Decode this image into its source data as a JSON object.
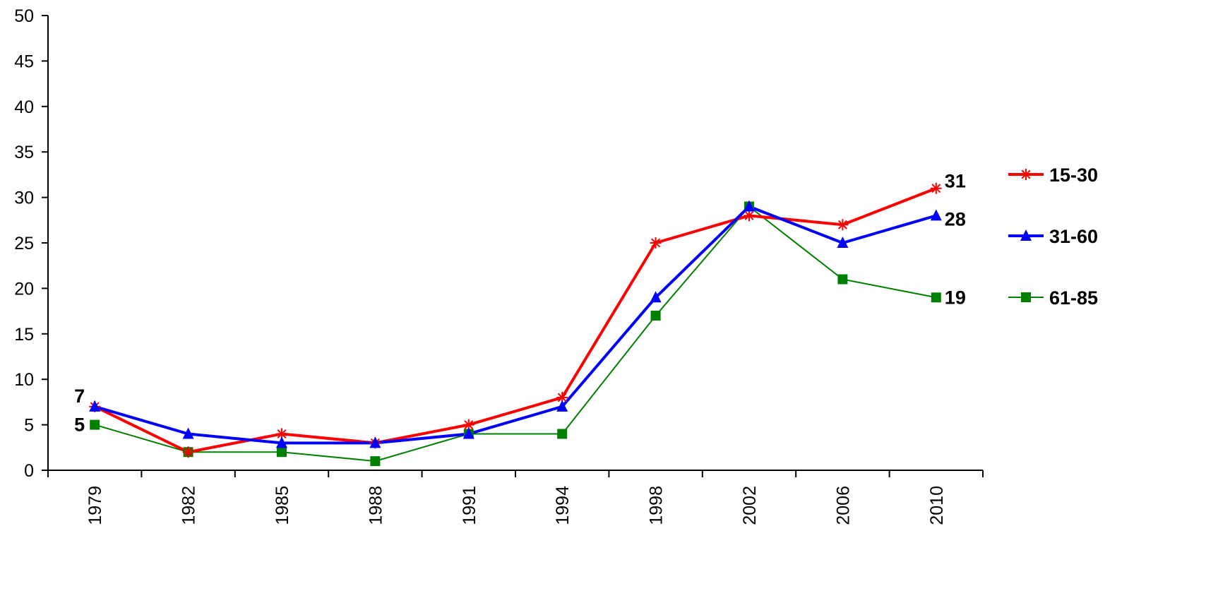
{
  "chart_data": {
    "type": "line",
    "title": "",
    "xlabel": "",
    "ylabel": "",
    "categories": [
      "1979",
      "1982",
      "1985",
      "1988",
      "1991",
      "1994",
      "1998",
      "2002",
      "2006",
      "2010"
    ],
    "ylim": [
      0,
      50
    ],
    "yticks": [
      0,
      5,
      10,
      15,
      20,
      25,
      30,
      35,
      40,
      45,
      50
    ],
    "grid": false,
    "legend_position": "right",
    "series": [
      {
        "name": "15-30",
        "color": "#ff0000",
        "marker": "asterisk",
        "line_weight": "thick",
        "values": [
          7,
          2,
          4,
          3,
          5,
          8,
          25,
          28,
          27,
          31
        ]
      },
      {
        "name": "31-60",
        "color": "#0000ff",
        "marker": "triangle",
        "line_weight": "thick",
        "values": [
          7,
          4,
          3,
          3,
          4,
          7,
          19,
          29,
          25,
          28
        ]
      },
      {
        "name": "61-85",
        "color": "#008000",
        "marker": "square",
        "line_weight": "thin",
        "values": [
          5,
          2,
          2,
          1,
          4,
          4,
          17,
          29,
          21,
          19
        ]
      }
    ],
    "annotations": [
      {
        "series": "15-30",
        "index": 0,
        "text": "7",
        "side": "left"
      },
      {
        "series": "61-85",
        "index": 0,
        "text": "5",
        "side": "left"
      },
      {
        "series": "15-30",
        "index": 9,
        "text": "31",
        "side": "right"
      },
      {
        "series": "31-60",
        "index": 9,
        "text": "28",
        "side": "right"
      },
      {
        "series": "61-85",
        "index": 9,
        "text": "19",
        "side": "right"
      }
    ]
  }
}
